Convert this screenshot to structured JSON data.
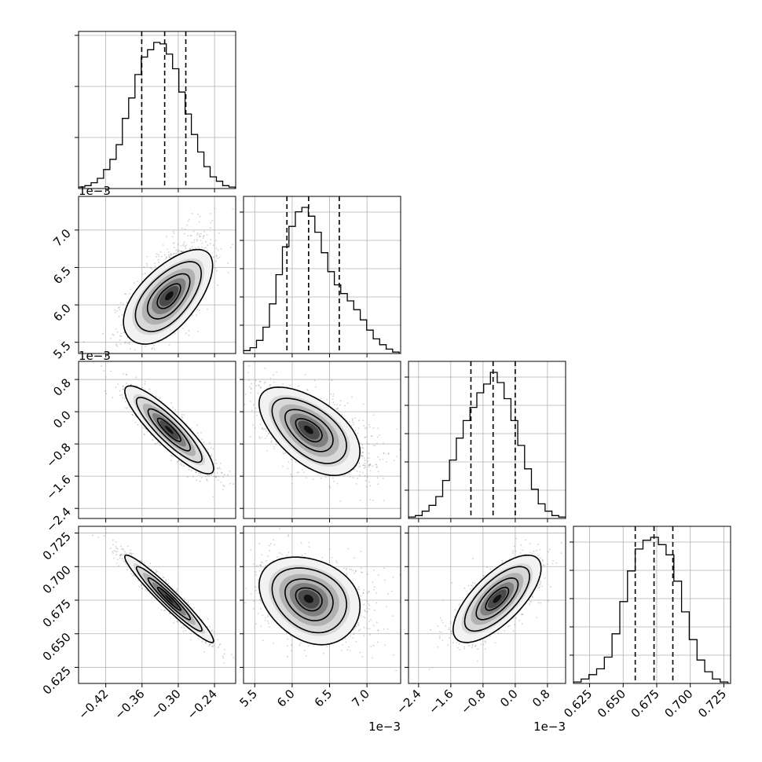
{
  "chart_data": {
    "type": "corner",
    "grid": true,
    "parameters": [
      {
        "range": [
          -0.465,
          -0.205
        ],
        "ticks": [
          -0.42,
          -0.36,
          -0.3,
          -0.24
        ],
        "tick_labels": [
          "−0.42",
          "−0.36",
          "−0.30",
          "−0.24"
        ],
        "offset_text": "",
        "quantiles": [
          -0.3605,
          -0.3225,
          -0.2875
        ]
      },
      {
        "range": [
          5.35,
          7.45
        ],
        "ticks": [
          5.5,
          6.0,
          6.5,
          7.0
        ],
        "tick_labels": [
          "5.5",
          "6.0",
          "6.5",
          "7.0"
        ],
        "offset_text": "1e−3",
        "quantiles": [
          5.93,
          6.22,
          6.63
        ]
      },
      {
        "range": [
          -2.65,
          1.25
        ],
        "ticks": [
          -2.4,
          -1.6,
          -0.8,
          0.0,
          0.8
        ],
        "tick_labels": [
          "−2.4",
          "−1.6",
          "−0.8",
          "0.0",
          "0.8"
        ],
        "offset_text": "1e−3",
        "quantiles": [
          -1.1,
          -0.55,
          0.0
        ]
      },
      {
        "range": [
          0.613,
          0.73
        ],
        "ticks": [
          0.625,
          0.65,
          0.675,
          0.7,
          0.725
        ],
        "tick_labels": [
          "0.625",
          "0.650",
          "0.675",
          "0.700",
          "0.725"
        ],
        "offset_text": "",
        "quantiles": [
          0.659,
          0.673,
          0.687
        ]
      }
    ],
    "histograms": [
      {
        "bins": [
          -0.465,
          -0.2057
        ],
        "counts": [
          0.01,
          0.02,
          0.04,
          0.07,
          0.13,
          0.2,
          0.3,
          0.48,
          0.62,
          0.78,
          0.9,
          0.95,
          1.0,
          0.99,
          0.92,
          0.82,
          0.66,
          0.51,
          0.37,
          0.25,
          0.15,
          0.08,
          0.05,
          0.02,
          0.01
        ]
      },
      {
        "bins": [
          5.35,
          7.43
        ],
        "counts": [
          0.02,
          0.04,
          0.09,
          0.18,
          0.34,
          0.54,
          0.73,
          0.87,
          0.97,
          1.0,
          0.94,
          0.83,
          0.69,
          0.56,
          0.47,
          0.41,
          0.36,
          0.3,
          0.23,
          0.16,
          0.1,
          0.06,
          0.03,
          0.01
        ]
      },
      {
        "bins": [
          -2.65,
          1.25
        ],
        "counts": [
          0.01,
          0.02,
          0.05,
          0.09,
          0.15,
          0.26,
          0.4,
          0.55,
          0.67,
          0.76,
          0.86,
          0.92,
          1.0,
          0.93,
          0.82,
          0.67,
          0.5,
          0.34,
          0.2,
          0.1,
          0.05,
          0.02,
          0.01
        ]
      },
      {
        "bins": [
          0.613,
          0.728
        ],
        "counts": [
          0.01,
          0.03,
          0.06,
          0.1,
          0.18,
          0.34,
          0.56,
          0.77,
          0.92,
          0.98,
          1.0,
          0.95,
          0.88,
          0.7,
          0.49,
          0.3,
          0.16,
          0.08,
          0.03,
          0.01
        ]
      }
    ],
    "joint": [
      {
        "x": 0,
        "y": 1,
        "mean": [
          -0.315,
          6.12
        ],
        "sd": [
          0.035,
          0.3
        ],
        "corr": 0.6,
        "skew_y": 0.9
      },
      {
        "x": 0,
        "y": 2,
        "mean": [
          -0.315,
          -0.45
        ],
        "sd": [
          0.035,
          0.52
        ],
        "corr": -0.88
      },
      {
        "x": 0,
        "y": 3,
        "mean": [
          -0.315,
          0.676
        ],
        "sd": [
          0.035,
          0.0155
        ],
        "corr": -0.96
      },
      {
        "x": 1,
        "y": 2,
        "mean": [
          6.22,
          -0.45
        ],
        "sd": [
          0.32,
          0.52
        ],
        "corr": -0.55,
        "skew_x": 0.9
      },
      {
        "x": 1,
        "y": 3,
        "mean": [
          6.22,
          0.676
        ],
        "sd": [
          0.32,
          0.0155
        ],
        "corr": -0.25,
        "skew_x": 0.9
      },
      {
        "x": 2,
        "y": 3,
        "mean": [
          -0.45,
          0.676
        ],
        "sd": [
          0.52,
          0.0155
        ],
        "corr": 0.7
      }
    ]
  }
}
